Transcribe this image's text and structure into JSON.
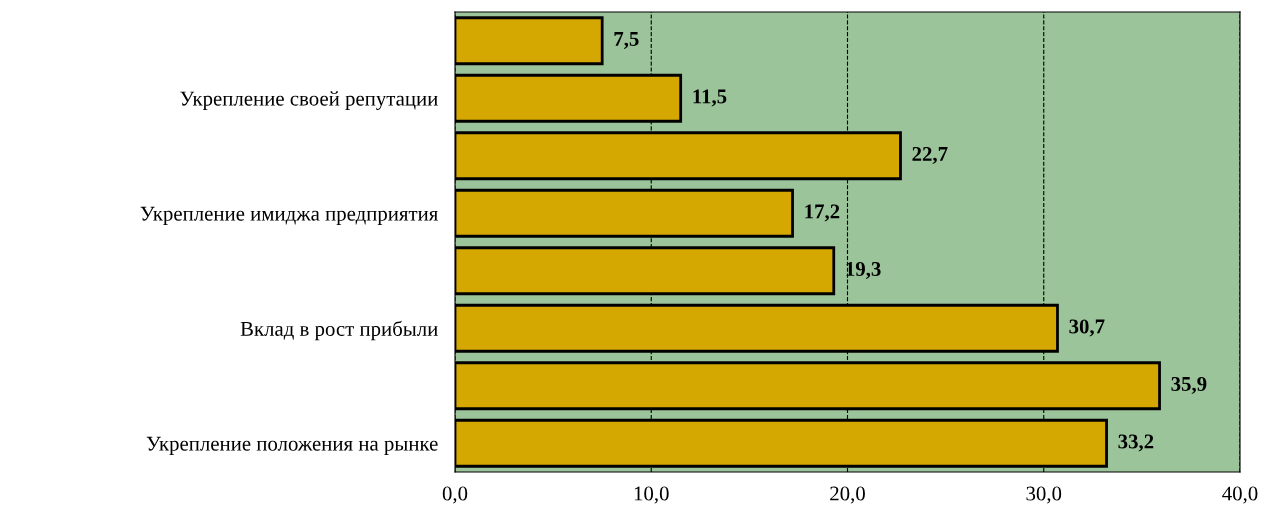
{
  "chart_data": {
    "type": "bar",
    "orientation": "horizontal",
    "categories": [
      null,
      "Укрепление своей репутации",
      null,
      "Укрепление имиджа предприятия",
      null,
      "Вклад в рост прибыли",
      null,
      "Укрепление положения на рынке"
    ],
    "values": [
      7.5,
      11.5,
      22.7,
      17.2,
      19.3,
      30.7,
      35.9,
      33.2
    ],
    "value_labels": [
      "7,5",
      "11,5",
      "22,7",
      "17,2",
      "19,3",
      "30,7",
      "35,9",
      "33,2"
    ],
    "color": "#d4a800",
    "xlim": [
      0,
      40
    ],
    "xticks": [
      {
        "value": 0,
        "label": "0,0"
      },
      {
        "value": 10,
        "label": "10,0"
      },
      {
        "value": 20,
        "label": "20,0"
      },
      {
        "value": 30,
        "label": "30,0"
      },
      {
        "value": 40,
        "label": "40,0"
      }
    ],
    "grid": "x",
    "line_style": "dashed",
    "legend": false
  }
}
